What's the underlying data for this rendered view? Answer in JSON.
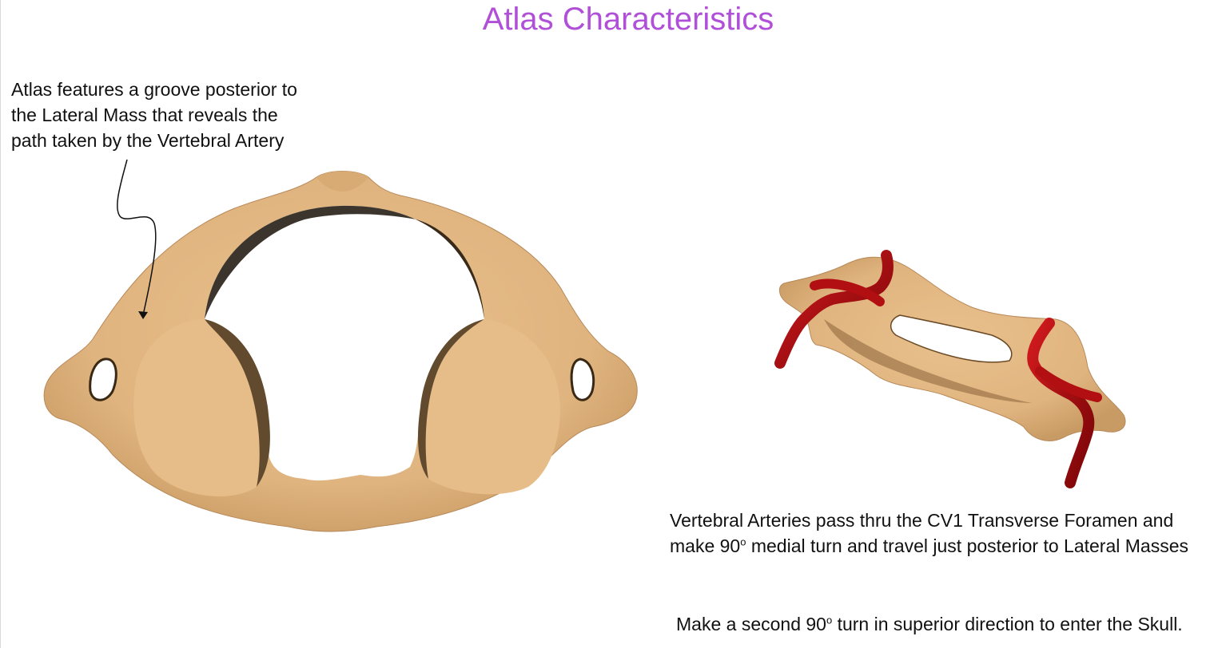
{
  "title": "Atlas Characteristics",
  "captions": {
    "groove": [
      "Atlas features a groove posterior to",
      "the Lateral Mass that reveals the",
      "path taken by the Vertebral Artery"
    ],
    "arteries": {
      "line1": "Vertebral Arteries pass thru the CV1 Transverse Foramen and",
      "line2_pre": "make 90",
      "line2_sup": "o",
      "line2_post": " medial turn and travel just posterior to Lateral Masses"
    },
    "second_turn": {
      "pre": "Make a second 90",
      "sup": "o",
      "post": " turn in superior direction to enter the Skull."
    }
  },
  "colors": {
    "title": "#b04fd8",
    "bone": "#e3b883",
    "bone_shadow": "#c2955f",
    "artery": "#b10f12",
    "artery_dark": "#6e0406"
  }
}
